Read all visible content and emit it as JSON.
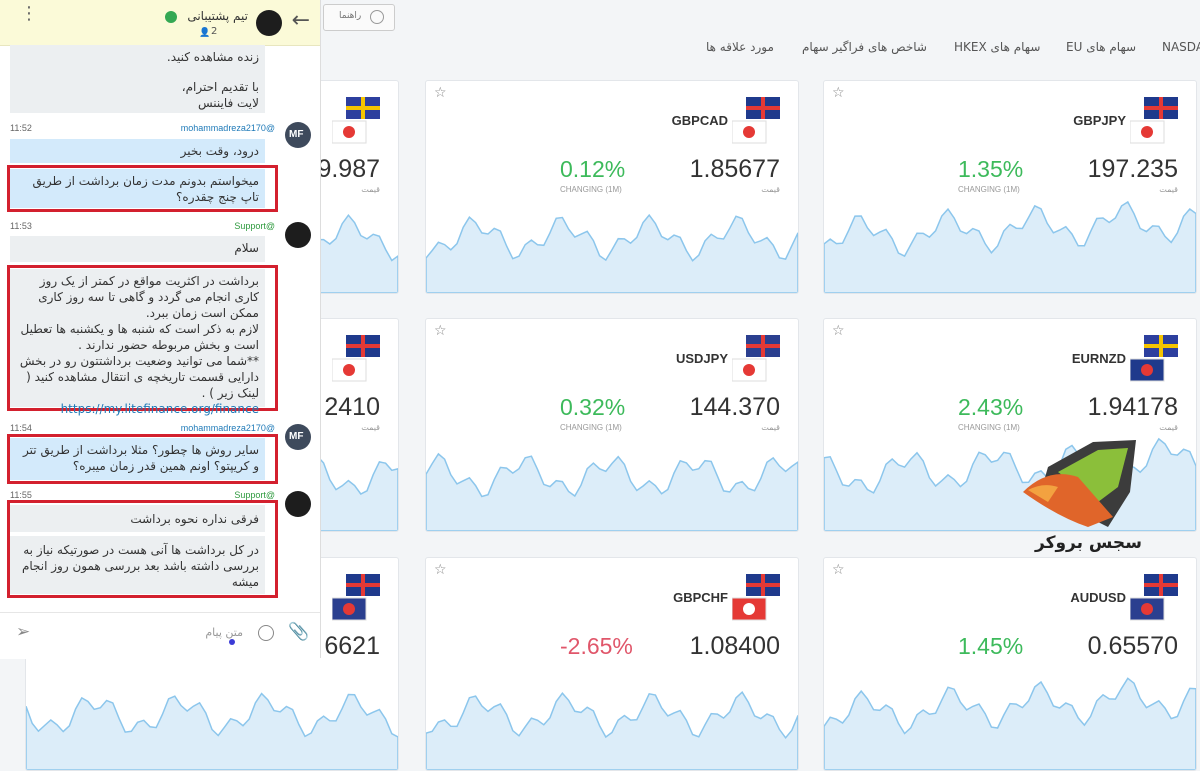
{
  "toolbar": {
    "help_button": "راهنما",
    "tabs": [
      "NASDA",
      "سهام های EU",
      "سهام های HKEX",
      "شاخص های فراگیر سهام",
      "مورد علاقه ها"
    ]
  },
  "cards": [
    {
      "price": "9.987",
      "price_label": "قیمت"
    },
    {
      "symbol": "GBPCAD",
      "price": "1.85677",
      "price_label": "قیمت",
      "change": "0.12%",
      "change_label": "CHANGING (1M)"
    },
    {
      "symbol": "GBPJPY",
      "price": "197.235",
      "price_label": "قیمت",
      "change": "1.35%",
      "change_label": "CHANGING (1M)"
    },
    {
      "price": "2410",
      "price_label": "قیمت"
    },
    {
      "symbol": "USDJPY",
      "price": "144.370",
      "price_label": "قیمت",
      "change": "0.32%",
      "change_label": "CHANGING (1M)"
    },
    {
      "symbol": "EURNZD",
      "price": "1.94178",
      "price_label": "قیمت",
      "change": "2.43%",
      "change_label": "CHANGING (1M)"
    },
    {
      "price": "6621"
    },
    {
      "symbol": "GBPCHF",
      "price": "1.08400",
      "change": "-2.65%"
    },
    {
      "symbol": "AUDUSD",
      "price": "0.65570",
      "change": "1.45%"
    }
  ],
  "chat": {
    "title": "تیم پشتیبانی",
    "member_count": "2",
    "messages": [
      {
        "lines": [
          "زنده مشاهده کنید.",
          "با تقدیم احترام،",
          "لایت فایننس"
        ]
      },
      {
        "time": "11:52",
        "sender": "@mohammadreza2170",
        "avatar": "MF",
        "bubbles": [
          "درود، وقت بخیر",
          "میخواستم بدونم مدت زمان برداشت از طریق تاپ چنج چقدره؟"
        ]
      },
      {
        "time": "11:53",
        "sender": "@Support",
        "bubbles": [
          "سلام",
          "برداشت در اکثریت مواقع در کمتر از یک روز کاری انجام می گردد و گاهی تا سه روز کاری ممکن است زمان ببرد.",
          "لازم به ذکر است که شنبه ها و یکشنبه ها تعطیل است و بخش مربوطه حضور ندارند .",
          "**شما می توانید وضعیت برداشتتون رو در بخش دارایی قسمت تاریخچه ی انتقال مشاهده کنید ( لینک زیر ) .",
          "https://my.litefinance.org/finance"
        ]
      },
      {
        "time": "11:54",
        "sender": "@mohammadreza2170",
        "avatar": "MF",
        "bubbles": [
          "سایر روش ها چطور؟ مثلا برداشت از طریق تتر و کریپتو؟ اونم همین قدر زمان میبره؟"
        ]
      },
      {
        "time": "11:55",
        "sender": "@Support",
        "bubbles": [
          "فرقی نداره نحوه برداشت",
          "در کل برداشت ها آنی هست در صورتیکه نیاز به بررسی داشته باشد بعد بررسی همون روز انجام میشه"
        ]
      }
    ],
    "input_placeholder": "متن پیام"
  },
  "watermark": "سجس بروکر"
}
